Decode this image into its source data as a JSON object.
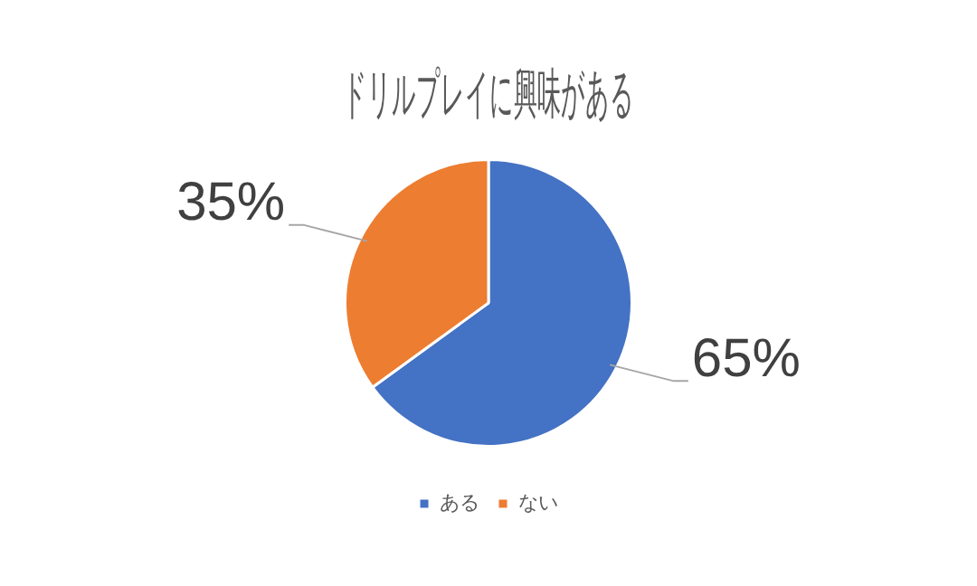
{
  "chart_data": {
    "type": "pie",
    "title": "ドリルプレイに興味がある",
    "categories": [
      "ある",
      "ない"
    ],
    "values": [
      65,
      35
    ],
    "colors": [
      "#4472c4",
      "#ed7d31"
    ],
    "value_labels": [
      "65%",
      "35%"
    ],
    "legend": "bottom"
  }
}
